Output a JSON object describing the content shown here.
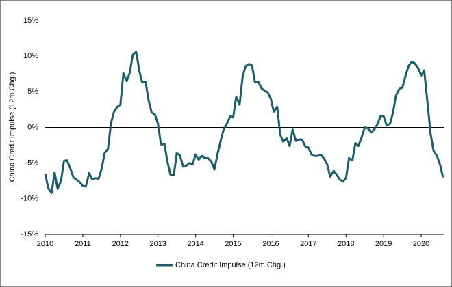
{
  "chart_data": {
    "type": "line",
    "y_label": "China Credit Impulse (12m Chg.)",
    "x": [
      2010.0,
      2010.08,
      2010.17,
      2010.25,
      2010.33,
      2010.42,
      2010.5,
      2010.58,
      2010.67,
      2010.75,
      2010.83,
      2010.92,
      2011.0,
      2011.08,
      2011.17,
      2011.25,
      2011.33,
      2011.42,
      2011.5,
      2011.58,
      2011.67,
      2011.75,
      2011.83,
      2011.92,
      2012.0,
      2012.08,
      2012.17,
      2012.25,
      2012.33,
      2012.42,
      2012.5,
      2012.58,
      2012.67,
      2012.75,
      2012.83,
      2012.92,
      2013.0,
      2013.08,
      2013.17,
      2013.25,
      2013.33,
      2013.42,
      2013.5,
      2013.58,
      2013.67,
      2013.75,
      2013.83,
      2013.92,
      2014.0,
      2014.08,
      2014.17,
      2014.25,
      2014.33,
      2014.42,
      2014.5,
      2014.58,
      2014.67,
      2014.75,
      2014.83,
      2014.92,
      2015.0,
      2015.08,
      2015.17,
      2015.25,
      2015.33,
      2015.42,
      2015.5,
      2015.58,
      2015.67,
      2015.75,
      2015.83,
      2015.92,
      2016.0,
      2016.08,
      2016.17,
      2016.25,
      2016.33,
      2016.42,
      2016.5,
      2016.58,
      2016.67,
      2016.75,
      2016.83,
      2016.92,
      2017.0,
      2017.08,
      2017.17,
      2017.25,
      2017.33,
      2017.42,
      2017.5,
      2017.58,
      2017.67,
      2017.75,
      2017.83,
      2017.92,
      2018.0,
      2018.08,
      2018.17,
      2018.25,
      2018.33,
      2018.42,
      2018.5,
      2018.58,
      2018.67,
      2018.75,
      2018.83,
      2018.92,
      2019.0,
      2019.08,
      2019.17,
      2019.25,
      2019.33,
      2019.42,
      2019.5,
      2019.58,
      2019.67,
      2019.75,
      2019.83,
      2019.92,
      2020.0,
      2020.08,
      2020.17,
      2020.25,
      2020.33,
      2020.42,
      2020.5,
      2020.58
    ],
    "series": [
      {
        "name": "China Credit Impulse (12m Chg.)",
        "color": "#1b5e6b",
        "values": [
          -6.5,
          -8.5,
          -9.2,
          -6.3,
          -8.6,
          -7.5,
          -4.7,
          -4.6,
          -5.8,
          -7.0,
          -7.3,
          -7.7,
          -8.2,
          -8.3,
          -6.4,
          -7.3,
          -7.1,
          -7.2,
          -5.8,
          -3.6,
          -3.0,
          0.6,
          2.2,
          2.9,
          3.2,
          7.6,
          6.5,
          7.7,
          10.2,
          10.6,
          8.0,
          6.3,
          6.4,
          3.8,
          2.1,
          1.8,
          0.5,
          -2.4,
          -2.3,
          -4.8,
          -6.6,
          -6.7,
          -3.6,
          -3.9,
          -5.5,
          -5.4,
          -5.0,
          -5.2,
          -3.8,
          -4.5,
          -4.0,
          -4.3,
          -4.3,
          -4.8,
          -5.9,
          -3.8,
          -1.8,
          -0.2,
          0.5,
          1.6,
          1.4,
          4.3,
          3.2,
          7.1,
          8.6,
          8.9,
          8.7,
          6.3,
          6.4,
          5.5,
          5.2,
          4.9,
          4.0,
          2.2,
          2.9,
          -1.0,
          -2.0,
          -1.5,
          -2.6,
          -0.3,
          -1.9,
          -1.7,
          -1.7,
          -2.7,
          -2.8,
          -3.8,
          -4.0,
          -4.0,
          -3.8,
          -4.4,
          -5.2,
          -6.9,
          -6.1,
          -6.6,
          -7.3,
          -7.6,
          -7.1,
          -4.3,
          -4.6,
          -2.2,
          -2.6,
          -1.3,
          0.0,
          -0.1,
          -0.7,
          -0.3,
          0.4,
          1.6,
          1.6,
          0.3,
          0.5,
          2.1,
          4.5,
          5.4,
          5.6,
          7.2,
          8.7,
          9.2,
          9.0,
          8.3,
          7.3,
          8.0,
          3.3,
          -0.9,
          -3.3,
          -4.0,
          -5.2,
          -7.0
        ]
      }
    ],
    "xlim": [
      2010,
      2020.6
    ],
    "xticks": [
      2010,
      2011,
      2012,
      2013,
      2014,
      2015,
      2016,
      2017,
      2018,
      2019,
      2020
    ],
    "ylim": [
      -15,
      15
    ],
    "yticks": [
      {
        "value": -15,
        "label": "-15%"
      },
      {
        "value": -10,
        "label": "-10%"
      },
      {
        "value": -5,
        "label": "-5%"
      },
      {
        "value": 0,
        "label": "0%"
      },
      {
        "value": 5,
        "label": "5%"
      },
      {
        "value": 10,
        "label": "10%"
      },
      {
        "value": 15,
        "label": "15%"
      }
    ],
    "legend": "bottom"
  }
}
